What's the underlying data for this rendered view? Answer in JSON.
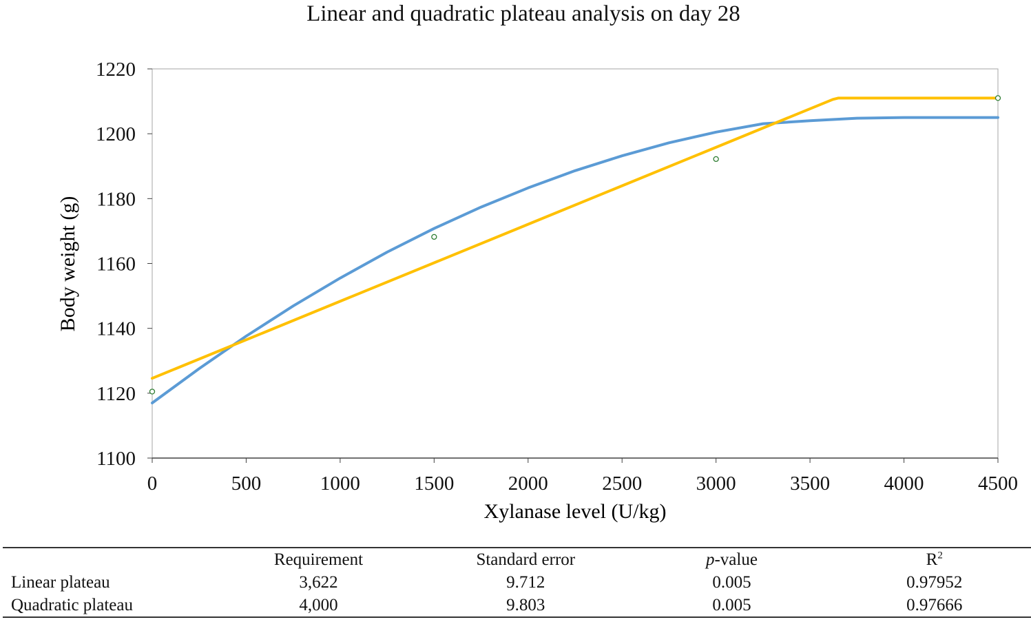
{
  "chart_data": {
    "type": "line",
    "title": "Linear and quadratic plateau analysis on day 28",
    "xlabel": "Xylanase level (U/kg)",
    "ylabel": "Body weight (g)",
    "xlim": [
      0,
      4500
    ],
    "ylim": [
      1100,
      1220
    ],
    "xticks": [
      0,
      500,
      1000,
      1500,
      2000,
      2500,
      3000,
      3500,
      4000,
      4500
    ],
    "yticks": [
      1100,
      1120,
      1140,
      1160,
      1180,
      1200,
      1220
    ],
    "grid": false,
    "legend": "none",
    "series": [
      {
        "kind": "fitted-curve",
        "color": "#5B9BD5",
        "x": [
          0,
          250,
          500,
          750,
          1000,
          1250,
          1500,
          1750,
          2000,
          2250,
          2500,
          2750,
          3000,
          3250,
          3500,
          3750,
          4000,
          4250,
          4500
        ],
        "y": [
          1117,
          1127.6,
          1137.6,
          1146.9,
          1155.5,
          1163.5,
          1170.8,
          1177.4,
          1183.3,
          1188.6,
          1193.2,
          1197.2,
          1200.5,
          1203.1,
          1204.0,
          1204.8,
          1205,
          1205,
          1205
        ]
      },
      {
        "kind": "fitted-line",
        "color": "#FFC000",
        "x": [
          0,
          3622,
          3650,
          4500
        ],
        "y": [
          1124.6,
          1210.6,
          1211,
          1211
        ]
      },
      {
        "kind": "observed-points",
        "color": "#2E7D32",
        "x": [
          0,
          1500,
          3000,
          4500
        ],
        "y": [
          1120.5,
          1168.2,
          1192.2,
          1211
        ]
      }
    ]
  },
  "table": {
    "headers": {
      "requirement": "Requirement",
      "standard_error": "Standard error",
      "p_letter": "p",
      "p_suffix": "-value",
      "r_base": "R",
      "r_sup": "2"
    },
    "rows": [
      {
        "label": "Linear plateau",
        "requirement": "3,622",
        "standard_error": "9.712",
        "p_value": "0.005",
        "r2": "0.97952"
      },
      {
        "label": "Quadratic plateau",
        "requirement": "4,000",
        "standard_error": "9.803",
        "p_value": "0.005",
        "r2": "0.97666"
      }
    ]
  }
}
